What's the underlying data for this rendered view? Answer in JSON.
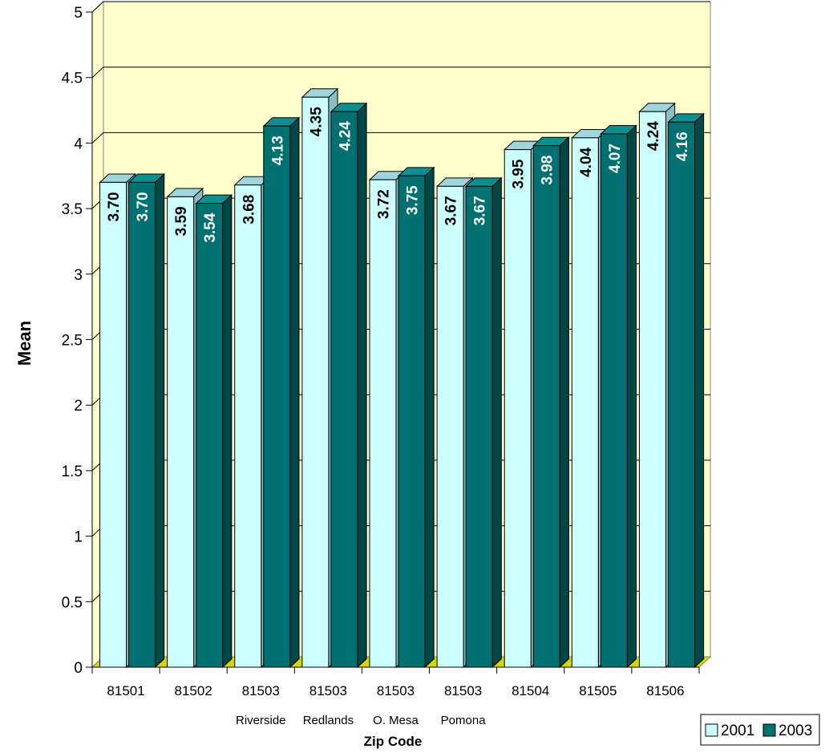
{
  "chart_data": {
    "type": "bar",
    "xlabel": "Zip Code",
    "ylabel": "Mean",
    "ylim": [
      0,
      5
    ],
    "yticks": [
      "0",
      "0.5",
      "1",
      "1.5",
      "2",
      "2.5",
      "3",
      "3.5",
      "4",
      "4.5",
      "5"
    ],
    "grid": true,
    "legend_position": "bottom-right",
    "categories": [
      {
        "code": "81501",
        "sub": ""
      },
      {
        "code": "81502",
        "sub": ""
      },
      {
        "code": "81503",
        "sub": "Riverside"
      },
      {
        "code": "81503",
        "sub": "Redlands"
      },
      {
        "code": "81503",
        "sub": "O. Mesa"
      },
      {
        "code": "81503",
        "sub": "Pomona"
      },
      {
        "code": "81504",
        "sub": ""
      },
      {
        "code": "81505",
        "sub": ""
      },
      {
        "code": "81506",
        "sub": ""
      }
    ],
    "series": [
      {
        "name": "2001",
        "color": "#ccffff",
        "label_color": "#000000",
        "values": [
          3.7,
          3.59,
          3.68,
          4.35,
          3.72,
          3.67,
          3.95,
          4.04,
          4.24
        ],
        "labels": [
          "3.70",
          "3.59",
          "3.68",
          "4.35",
          "3.72",
          "3.67",
          "3.95",
          "4.04",
          "4.24"
        ]
      },
      {
        "name": "2003",
        "color": "#007070",
        "label_color": "#ffffff",
        "values": [
          3.7,
          3.54,
          4.13,
          4.24,
          3.75,
          3.67,
          3.98,
          4.07,
          4.16
        ],
        "labels": [
          "3.70",
          "3.54",
          "4.13",
          "4.24",
          "3.75",
          "3.67",
          "3.98",
          "4.07",
          "4.16"
        ]
      }
    ],
    "colors": {
      "plot_background": "#ffffcc",
      "floor": "#d6d600",
      "grid": "#000000"
    }
  }
}
